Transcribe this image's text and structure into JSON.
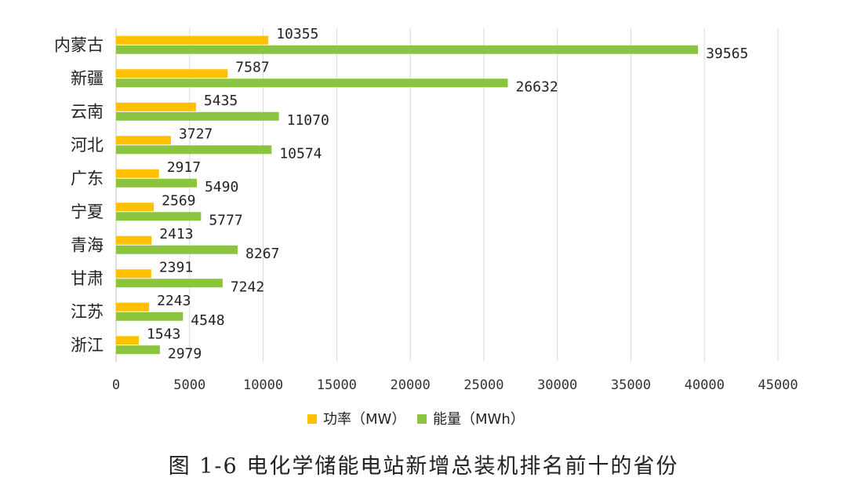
{
  "chart_data": {
    "type": "bar",
    "orientation": "horizontal",
    "categories": [
      "内蒙古",
      "新疆",
      "云南",
      "河北",
      "广东",
      "宁夏",
      "青海",
      "甘肃",
      "江苏",
      "浙江"
    ],
    "series": [
      {
        "name": "功率（MW）",
        "color": "#FFC000",
        "values": [
          10355,
          7587,
          5435,
          3727,
          2917,
          2569,
          2413,
          2391,
          2243,
          1543
        ]
      },
      {
        "name": "能量（MWh）",
        "color": "#8BC53F",
        "values": [
          39565,
          26632,
          11070,
          10574,
          5490,
          5777,
          8267,
          7242,
          4548,
          2979
        ]
      }
    ],
    "xlim": [
      0,
      45000
    ],
    "xticks": [
      0,
      5000,
      10000,
      15000,
      20000,
      25000,
      30000,
      35000,
      40000,
      45000
    ],
    "xlabel": "",
    "ylabel": "",
    "grid": true,
    "legend_position": "bottom"
  },
  "caption": "图 1-6 电化学储能电站新增总装机排名前十的省份"
}
